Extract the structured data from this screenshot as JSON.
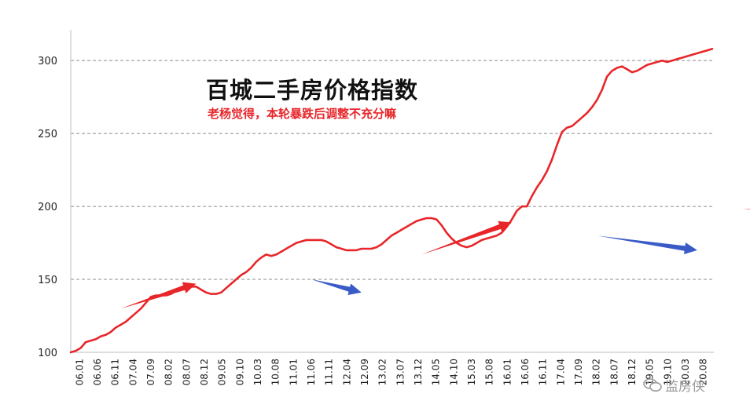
{
  "chart_data": {
    "type": "line",
    "title": "百城二手房价格指数",
    "subtitle": "老杨觉得，本轮暴跌后调整不充分嘛",
    "xlabel": "",
    "ylabel": "",
    "ylim": [
      100,
      320
    ],
    "yticks": [
      100,
      150,
      200,
      250,
      300
    ],
    "grid": "horizontal-dashed",
    "legend": "none",
    "xtick_labels": [
      "06.01",
      "06.06",
      "06.11",
      "07.04",
      "07.09",
      "08.02",
      "08.07",
      "08.12",
      "09.05",
      "09.10",
      "10.03",
      "10.08",
      "11.01",
      "11.06",
      "11.11",
      "12.04",
      "12.09",
      "13.02",
      "13.07",
      "13.12",
      "14.05",
      "14.10",
      "15.03",
      "15.08",
      "16.01",
      "16.06",
      "16.11",
      "17.04",
      "17.09",
      "18.02",
      "18.07",
      "18.12",
      "19.05",
      "19.10",
      "20.03",
      "20.08"
    ],
    "series": [
      {
        "color": "#e8262a",
        "points": [
          [
            0,
            100
          ],
          [
            1,
            101
          ],
          [
            2,
            103
          ],
          [
            3,
            107
          ],
          [
            4,
            108
          ],
          [
            5,
            109
          ],
          [
            6,
            111
          ],
          [
            7,
            112
          ],
          [
            8,
            114
          ],
          [
            9,
            117
          ],
          [
            10,
            119
          ],
          [
            11,
            121
          ],
          [
            12,
            124
          ],
          [
            13,
            127
          ],
          [
            14,
            130
          ],
          [
            15,
            134
          ],
          [
            16,
            138
          ],
          [
            17,
            139
          ],
          [
            18,
            139
          ],
          [
            19,
            139
          ],
          [
            20,
            140
          ],
          [
            21,
            142
          ],
          [
            22,
            143
          ],
          [
            23,
            144
          ],
          [
            24,
            145
          ],
          [
            25,
            145
          ],
          [
            26,
            143
          ],
          [
            27,
            141
          ],
          [
            28,
            140
          ],
          [
            29,
            140
          ],
          [
            30,
            141
          ],
          [
            31,
            144
          ],
          [
            32,
            147
          ],
          [
            33,
            150
          ],
          [
            34,
            153
          ],
          [
            35,
            155
          ],
          [
            36,
            158
          ],
          [
            37,
            162
          ],
          [
            38,
            165
          ],
          [
            39,
            167
          ],
          [
            40,
            166
          ],
          [
            41,
            167
          ],
          [
            42,
            169
          ],
          [
            43,
            171
          ],
          [
            44,
            173
          ],
          [
            45,
            175
          ],
          [
            46,
            176
          ],
          [
            47,
            177
          ],
          [
            48,
            177
          ],
          [
            49,
            177
          ],
          [
            50,
            177
          ],
          [
            51,
            176
          ],
          [
            52,
            174
          ],
          [
            53,
            172
          ],
          [
            54,
            171
          ],
          [
            55,
            170
          ],
          [
            56,
            170
          ],
          [
            57,
            170
          ],
          [
            58,
            171
          ],
          [
            59,
            171
          ],
          [
            60,
            171
          ],
          [
            61,
            172
          ],
          [
            62,
            174
          ],
          [
            63,
            177
          ],
          [
            64,
            180
          ],
          [
            65,
            182
          ],
          [
            66,
            184
          ],
          [
            67,
            186
          ],
          [
            68,
            188
          ],
          [
            69,
            190
          ],
          [
            70,
            191
          ],
          [
            71,
            192
          ],
          [
            72,
            192
          ],
          [
            73,
            191
          ],
          [
            74,
            187
          ],
          [
            75,
            182
          ],
          [
            76,
            178
          ],
          [
            77,
            175
          ],
          [
            78,
            173
          ],
          [
            79,
            172
          ],
          [
            80,
            173
          ],
          [
            81,
            175
          ],
          [
            82,
            177
          ],
          [
            83,
            178
          ],
          [
            84,
            179
          ],
          [
            85,
            180
          ],
          [
            86,
            182
          ],
          [
            87,
            186
          ],
          [
            88,
            191
          ],
          [
            89,
            197
          ],
          [
            90,
            200
          ],
          [
            91,
            200
          ],
          [
            92,
            207
          ],
          [
            93,
            213
          ],
          [
            94,
            218
          ],
          [
            95,
            224
          ],
          [
            96,
            232
          ],
          [
            97,
            242
          ],
          [
            98,
            251
          ],
          [
            99,
            254
          ],
          [
            100,
            255
          ],
          [
            101,
            258
          ],
          [
            102,
            261
          ],
          [
            103,
            264
          ],
          [
            104,
            268
          ],
          [
            105,
            273
          ],
          [
            106,
            280
          ],
          [
            107,
            289
          ],
          [
            108,
            293
          ],
          [
            109,
            295
          ],
          [
            110,
            296
          ],
          [
            111,
            294
          ],
          [
            112,
            292
          ],
          [
            113,
            293
          ],
          [
            114,
            295
          ],
          [
            115,
            297
          ],
          [
            116,
            298
          ],
          [
            117,
            299
          ],
          [
            118,
            300
          ],
          [
            119,
            299
          ],
          [
            120,
            300
          ],
          [
            121,
            301
          ],
          [
            122,
            302
          ],
          [
            123,
            303
          ],
          [
            124,
            304
          ],
          [
            125,
            305
          ],
          [
            126,
            306
          ],
          [
            127,
            307
          ],
          [
            128,
            308
          ]
        ]
      }
    ],
    "annotations": [
      {
        "type": "arrow",
        "color": "#e8262a",
        "from": [
          10,
          130
        ],
        "to": [
          25,
          147
        ]
      },
      {
        "type": "arrow",
        "color": "#3a5bc7",
        "from": [
          48,
          150
        ],
        "to": [
          58,
          141
        ]
      },
      {
        "type": "arrow",
        "color": "#e8262a",
        "from": [
          70,
          167
        ],
        "to": [
          88,
          189
        ]
      },
      {
        "type": "arrow",
        "color": "#3a5bc7",
        "from": [
          105,
          180
        ],
        "to": [
          125,
          170
        ]
      },
      {
        "type": "arrow",
        "color": "#e8262a",
        "from": [
          134,
          198
        ],
        "to": [
          152,
          202
        ]
      },
      {
        "type": "arrow",
        "color": "#3a5bc7",
        "from": [
          166,
          195
        ],
        "to": [
          178,
          181
        ]
      },
      {
        "type": "arrow",
        "color": "#e8262a",
        "from": [
          182,
          211
        ],
        "to": [
          220,
          283
        ]
      },
      {
        "type": "arrow",
        "color": "#3a5bc7",
        "from": [
          280,
          304
        ],
        "to": [
          290,
          297
        ]
      },
      {
        "type": "arrow",
        "color": "#e8262a",
        "from": [
          287,
          306
        ],
        "to": [
          306,
          318
        ]
      }
    ]
  },
  "watermark": {
    "icon": "wechat-icon",
    "text": "监房侠"
  }
}
